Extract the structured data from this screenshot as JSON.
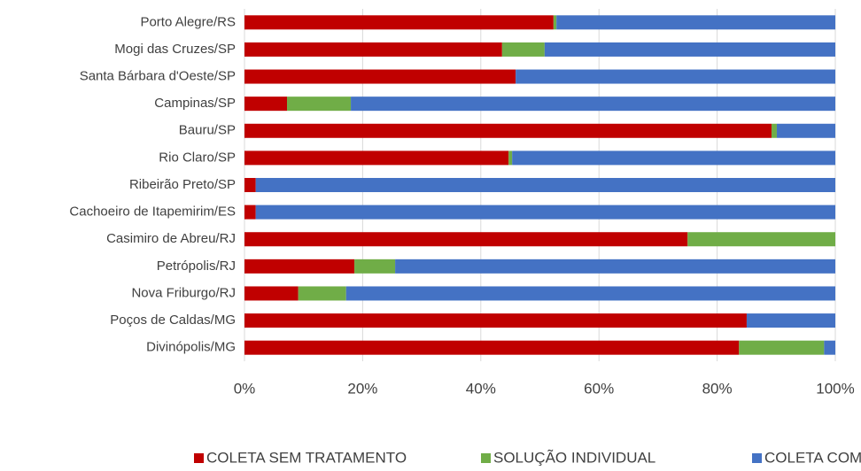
{
  "chart_data": {
    "type": "bar",
    "orientation": "horizontal",
    "stacked": true,
    "categories": [
      "Porto Alegre/RS",
      "Mogi das Cruzes/SP",
      "Santa Bárbara d'Oeste/SP",
      "Campinas/SP",
      "Bauru/SP",
      "Rio Claro/SP",
      "Ribeirão Preto/SP",
      "Cachoeiro de Itapemirim/ES",
      "Casimiro de Abreu/RJ",
      "Petrópolis/RJ",
      "Nova Friburgo/RJ",
      "Poços de Caldas/MG",
      "Divinópolis/MG"
    ],
    "series": [
      {
        "name": "COLETA SEM TRATAMENTO",
        "color": "#c00000",
        "values": [
          52.3,
          43.6,
          45.9,
          7.2,
          89.2,
          44.7,
          1.9,
          1.9,
          75,
          18.6,
          9.1,
          85,
          83.7
        ]
      },
      {
        "name": "SOLUÇÃO INDIVIDUAL",
        "color": "#70ad47",
        "values": [
          0.5,
          7.2,
          0,
          10.8,
          0.9,
          0.6,
          0,
          0,
          25,
          6.9,
          8.1,
          0,
          14.4
        ]
      },
      {
        "name": "COLETA COM TRATAMENTO",
        "color": "#4472c4",
        "values": [
          47.2,
          49.2,
          54.1,
          82,
          9.9,
          54.7,
          98.1,
          98.1,
          0,
          74.5,
          82.8,
          15,
          1.9
        ]
      }
    ],
    "xlim": [
      0,
      100
    ],
    "xticks": [
      {
        "value": 0,
        "label": "0%"
      },
      {
        "value": 20,
        "label": "20%"
      },
      {
        "value": 40,
        "label": "40%"
      },
      {
        "value": 60,
        "label": "60%"
      },
      {
        "value": 80,
        "label": "80%"
      },
      {
        "value": 100,
        "label": "100%"
      }
    ],
    "grid": true,
    "legend": "bottom"
  }
}
